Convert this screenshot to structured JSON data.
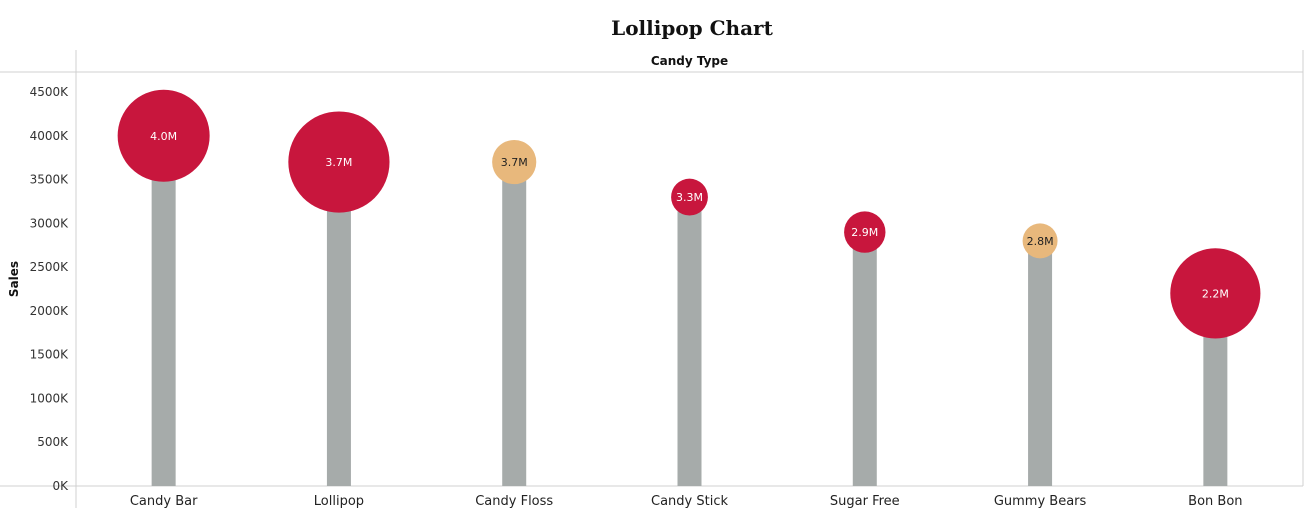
{
  "chart_data": {
    "type": "lollipop",
    "title": "Lollipop Chart",
    "xlabel": "Candy Type",
    "ylabel": "Sales",
    "ylim": [
      0,
      4700000
    ],
    "y_ticks": [
      0,
      500000,
      1000000,
      1500000,
      2000000,
      2500000,
      3000000,
      3500000,
      4000000,
      4500000
    ],
    "y_tick_labels": [
      "0K",
      "500K",
      "1000K",
      "1500K",
      "2000K",
      "2500K",
      "3000K",
      "3500K",
      "4000K",
      "4500K"
    ],
    "categories": [
      "Candy Bar",
      "Lollipop",
      "Candy Floss",
      "Candy Stick",
      "Sugar Free",
      "Gummy Bears",
      "Bon Bon"
    ],
    "values": [
      4000000,
      3700000,
      3700000,
      3300000,
      2900000,
      2800000,
      2200000
    ],
    "data_labels": [
      "4.0M",
      "3.7M",
      "3.7M",
      "3.3M",
      "2.9M",
      "2.8M",
      "2.2M"
    ],
    "bubble_size_relative": [
      1.0,
      1.1,
      0.48,
      0.4,
      0.45,
      0.38,
      0.98
    ],
    "bubble_color": [
      "#c8163d",
      "#c8163d",
      "#e8b87c",
      "#c8163d",
      "#c8163d",
      "#e8b87c",
      "#c8163d"
    ],
    "label_color": [
      "#ffffff",
      "#ffffff",
      "#222222",
      "#ffffff",
      "#ffffff",
      "#222222",
      "#ffffff"
    ],
    "stem_color": "#a6abaa",
    "grid": false
  }
}
